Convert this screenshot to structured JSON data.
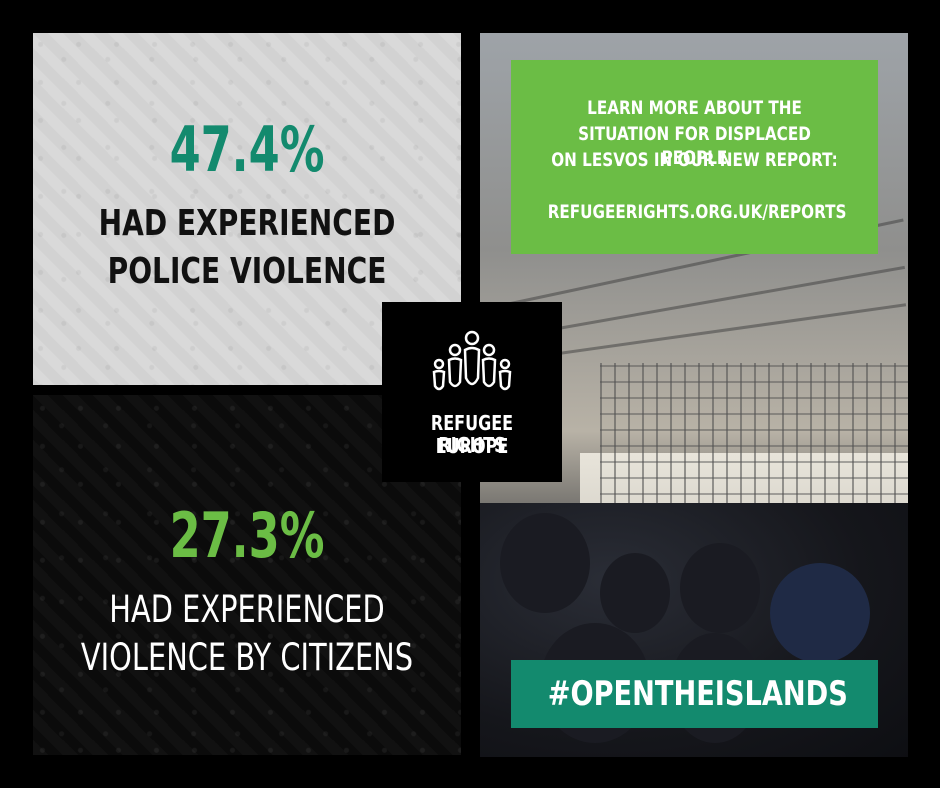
{
  "stats": [
    {
      "value": "47.4%",
      "line1": "HAD EXPERIENCED",
      "line2": "POLICE VIOLENCE",
      "value_color": "#138a6e"
    },
    {
      "value": "27.3%",
      "line1": "HAD EXPERIENCED",
      "line2": "VIOLENCE BY CITIZENS",
      "value_color": "#6bbd45"
    }
  ],
  "info": {
    "line1": "LEARN MORE ABOUT THE",
    "line2": "SITUATION FOR DISPLACED PEOPLE",
    "line3": "ON LESVOS IN OUR NEW REPORT:",
    "url": "REFUGEERIGHTS.ORG.UK/REPORTS"
  },
  "logo": {
    "icon": "people-figures-logo-icon",
    "line1": "REFUGEE RIGHTS",
    "line2": "EUROPE"
  },
  "hashtag": "#OPENTHEISLANDS",
  "colors": {
    "dark_green": "#138a6e",
    "light_green": "#6bbd45",
    "background": "#000000"
  }
}
